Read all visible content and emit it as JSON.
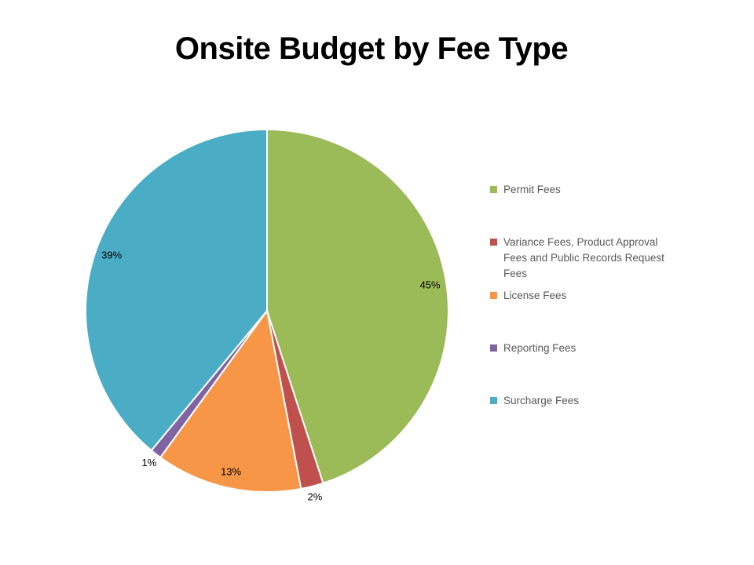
{
  "chart_data": {
    "type": "pie",
    "title": "Onsite Budget by Fee Type",
    "unit": "percent",
    "direction": "clockwise",
    "start_angle_deg": 0,
    "legend_position": "right",
    "slice_border_color": "#ffffff",
    "label_color": "#000000",
    "legend_text_color": "#595959",
    "slices": [
      {
        "label": "Permit Fees",
        "value": 45,
        "pct_label": "45%",
        "color": "#9BBB59",
        "pct_label_placement": "inside"
      },
      {
        "label": "Variance Fees, Product Approval Fees and Public Records Request Fees",
        "value": 2,
        "pct_label": "2%",
        "color": "#C0504D",
        "pct_label_placement": "outside"
      },
      {
        "label": "License Fees",
        "value": 13,
        "pct_label": "13%",
        "color": "#F79646",
        "pct_label_placement": "inside"
      },
      {
        "label": "Reporting Fees",
        "value": 1,
        "pct_label": "1%",
        "color": "#8064A2",
        "pct_label_placement": "outside"
      },
      {
        "label": "Surcharge Fees",
        "value": 39,
        "pct_label": "39%",
        "color": "#4BACC6",
        "pct_label_placement": "inside"
      }
    ]
  }
}
